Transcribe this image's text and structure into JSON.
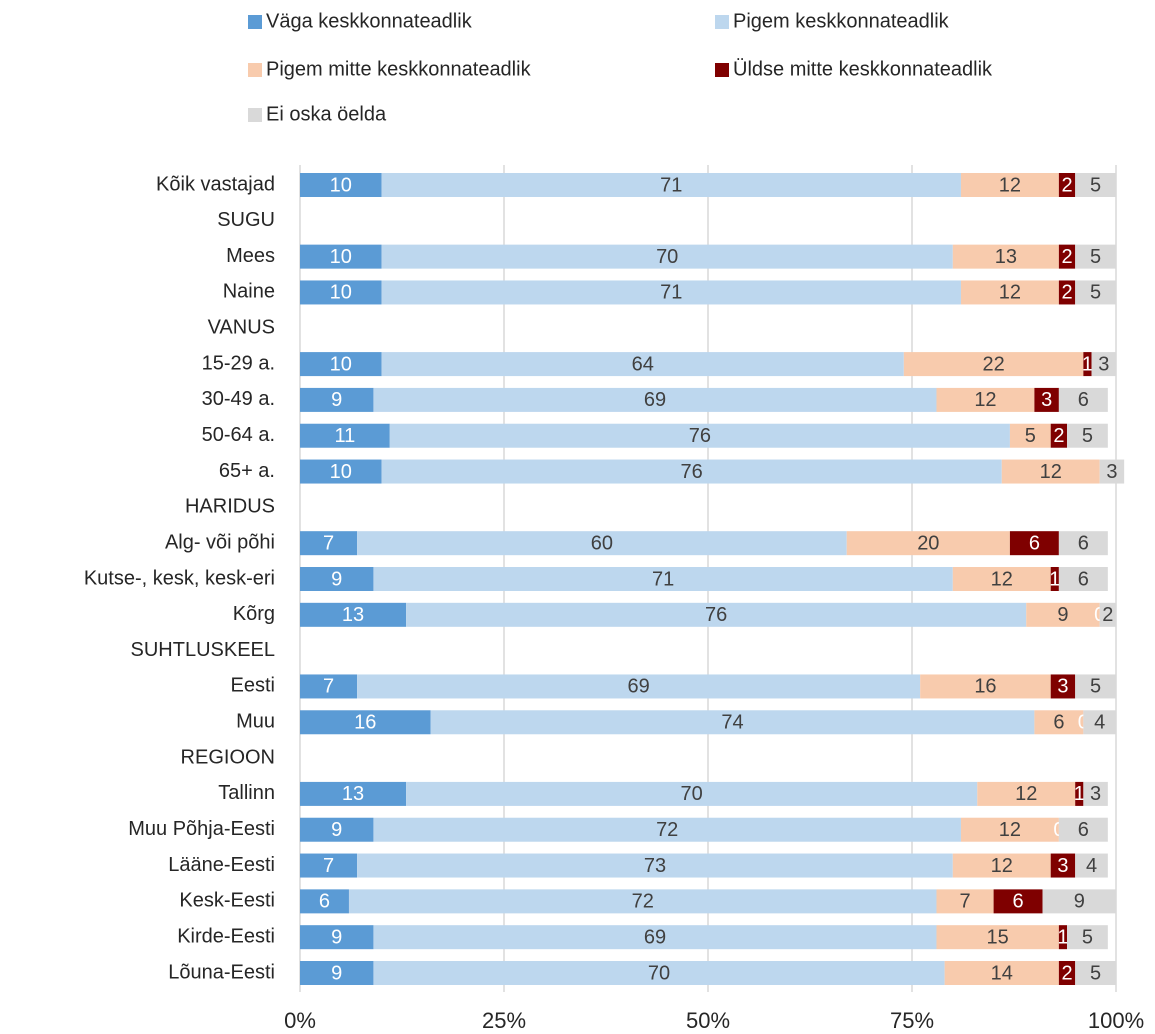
{
  "chart_data": {
    "type": "stacked_barh",
    "categories": [
      "Kõik vastajad",
      "SUGU",
      "Mees",
      "Naine",
      "VANUS",
      "15-29 a.",
      "30-49 a.",
      "50-64 a.",
      "65+ a.",
      "HARIDUS",
      "Alg- või põhi",
      "Kutse-, kesk, kesk-eri",
      "Kõrg",
      "SUHTLUSKEEL",
      "Eesti",
      "Muu",
      "REGIOON",
      "Tallinn",
      "Muu Põhja-Eesti",
      "Lääne-Eesti",
      "Kesk-Eesti",
      "Kirde-Eesti",
      "Lõuna-Eesti"
    ],
    "series": [
      {
        "name": "Väga keskkonnateadlik",
        "color": "#5b9bd5",
        "label_color": "#ffffff",
        "values": [
          10,
          null,
          10,
          10,
          null,
          10,
          9,
          11,
          10,
          null,
          7,
          9,
          13,
          null,
          7,
          16,
          null,
          13,
          9,
          7,
          6,
          9,
          9
        ]
      },
      {
        "name": "Pigem keskkonnateadlik",
        "color": "#bdd7ee",
        "label_color": "#404040",
        "values": [
          71,
          null,
          70,
          71,
          null,
          64,
          69,
          76,
          76,
          null,
          60,
          71,
          76,
          null,
          69,
          74,
          null,
          70,
          72,
          73,
          72,
          69,
          70
        ]
      },
      {
        "name": "Pigem mitte keskkonnateadlik",
        "color": "#f8cbad",
        "label_color": "#404040",
        "values": [
          12,
          null,
          13,
          12,
          null,
          22,
          12,
          5,
          12,
          null,
          20,
          12,
          9,
          null,
          16,
          6,
          null,
          12,
          12,
          12,
          7,
          15,
          14
        ]
      },
      {
        "name": "Üldse mitte keskkonnateadlik",
        "color": "#7f0000",
        "label_color": "#ffffff",
        "values": [
          2,
          null,
          2,
          2,
          null,
          1,
          3,
          2,
          null,
          null,
          6,
          1,
          0,
          null,
          3,
          0,
          null,
          1,
          0,
          3,
          6,
          1,
          2
        ]
      },
      {
        "name": "Ei oska öelda",
        "color": "#d9d9d9",
        "label_color": "#404040",
        "values": [
          5,
          null,
          5,
          5,
          null,
          3,
          6,
          5,
          3,
          null,
          6,
          6,
          2,
          null,
          5,
          4,
          null,
          3,
          6,
          4,
          9,
          5,
          5
        ]
      }
    ],
    "xlim": [
      0,
      100
    ],
    "xticks": [
      {
        "value": 0,
        "label": "0%"
      },
      {
        "value": 25,
        "label": "25%"
      },
      {
        "value": 50,
        "label": "50%"
      },
      {
        "value": 75,
        "label": "75%"
      },
      {
        "value": 100,
        "label": "100%"
      }
    ],
    "grid": true,
    "legend": "top"
  }
}
